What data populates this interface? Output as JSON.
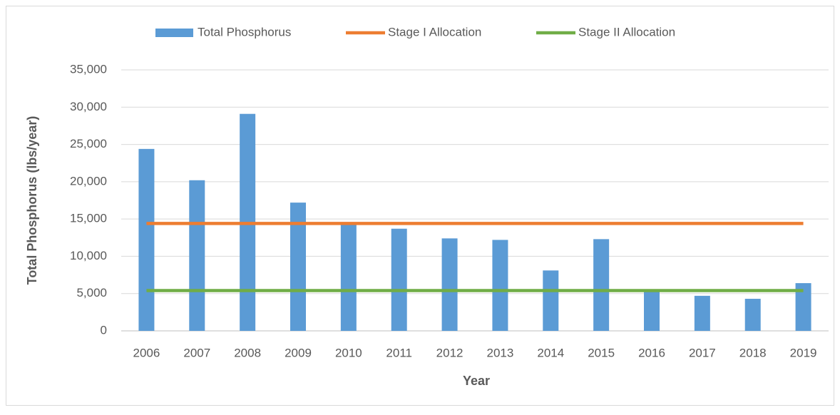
{
  "chart_data": {
    "type": "bar",
    "y_label": "Total Phosphorus (lbs/year)",
    "x_label": "Year",
    "categories": [
      "2006",
      "2007",
      "2008",
      "2009",
      "2010",
      "2011",
      "2012",
      "2013",
      "2014",
      "2015",
      "2016",
      "2017",
      "2018",
      "2019"
    ],
    "series": [
      {
        "name": "Total Phosphorus",
        "type": "bar",
        "color": "#5b9bd5",
        "values": [
          24400,
          20200,
          29100,
          17200,
          14300,
          13700,
          12400,
          12200,
          8100,
          12300,
          5500,
          4700,
          4300,
          6400
        ]
      },
      {
        "name": "Stage I Allocation",
        "type": "line",
        "color": "#ed7d31",
        "values": [
          14400,
          14400,
          14400,
          14400,
          14400,
          14400,
          14400,
          14400,
          14400,
          14400,
          14400,
          14400,
          14400,
          14400
        ]
      },
      {
        "name": "Stage II Allocation",
        "type": "line",
        "color": "#70ad47",
        "values": [
          5400,
          5400,
          5400,
          5400,
          5400,
          5400,
          5400,
          5400,
          5400,
          5400,
          5400,
          5400,
          5400,
          5400
        ]
      }
    ],
    "ylim": [
      0,
      35000
    ],
    "yticks": [
      0,
      {
        "value": 5000,
        "label": "5,000"
      },
      {
        "value": 10000,
        "label": "10,000"
      },
      {
        "value": 15000,
        "label": "15,000"
      },
      {
        "value": 20000,
        "label": "20,000"
      },
      {
        "value": 25000,
        "label": "25,000"
      },
      {
        "value": 30000,
        "label": "30,000"
      },
      {
        "value": 35000,
        "label": "35,000"
      }
    ],
    "grid": true,
    "legend": "top"
  }
}
